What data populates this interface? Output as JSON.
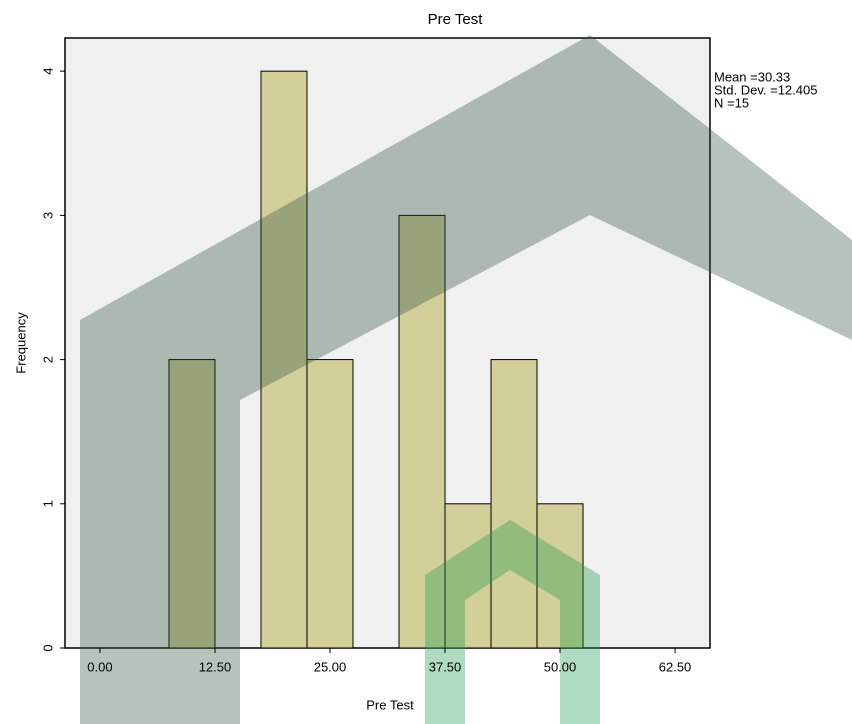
{
  "chart_data": {
    "type": "histogram",
    "title": "Pre Test",
    "x_label": "Pre Test",
    "y_label": "Frequency",
    "bins": [
      7.5,
      12.5,
      17.5,
      22.5,
      27.5,
      32.5,
      37.5,
      42.5,
      47.5,
      52.5
    ],
    "values": [
      2,
      0,
      4,
      2,
      0,
      3,
      1,
      2,
      1
    ],
    "color": "#d3cf98",
    "xlim": [
      -3.8,
      66.3
    ],
    "ylim": [
      0,
      4.23
    ],
    "xticks": [
      {
        "value": 0,
        "label": "0.00"
      },
      {
        "value": 12.5,
        "label": "12.50"
      },
      {
        "value": 25,
        "label": "25.00"
      },
      {
        "value": 37.5,
        "label": "37.50"
      },
      {
        "value": 50,
        "label": "50.00"
      },
      {
        "value": 62.5,
        "label": "62.50"
      }
    ],
    "yticks": [
      0,
      1,
      2,
      3,
      4
    ],
    "stats": [
      "Mean =30.33",
      "Std. Dev. =12.405",
      "N =15"
    ]
  }
}
